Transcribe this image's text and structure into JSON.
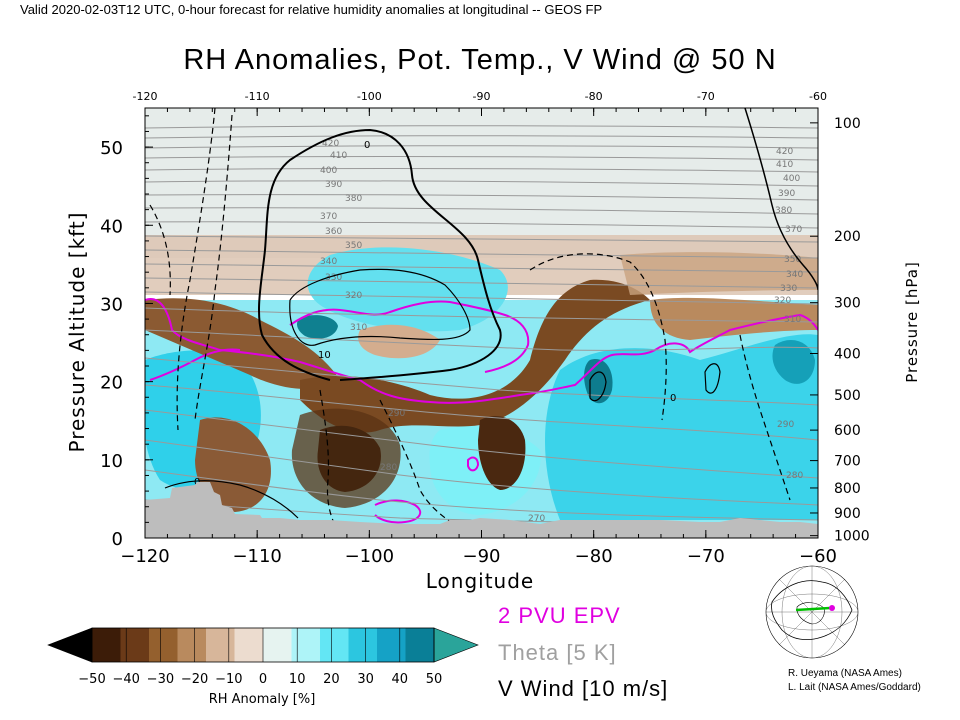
{
  "header": "Valid 2020-02-03T12 UTC, 0-hour forecast for relative humidity anomalies at longitudinal -- GEOS FP",
  "chart_data": {
    "type": "heatmap",
    "title": "RH Anomalies, Pot. Temp., V Wind @ 50 N",
    "xlabel": "Longitude",
    "ylabel": "Pressure Altitude [kft]",
    "y2label": "Pressure [hPa]",
    "xlim": [
      -120,
      -60
    ],
    "ylim": [
      0,
      55
    ],
    "x_ticks": [
      -120,
      -110,
      -100,
      -90,
      -80,
      -70,
      -60
    ],
    "x_tick_labels": [
      "−120",
      "−110",
      "−100",
      "−90",
      "−80",
      "−70",
      "−60"
    ],
    "top_ticks": [
      -120,
      -110,
      -100,
      -90,
      -80,
      -70,
      -60
    ],
    "y_ticks": [
      0,
      10,
      20,
      30,
      40,
      50
    ],
    "pressure_ticks": [
      {
        "hpa": 100,
        "kft": 53.1
      },
      {
        "hpa": 200,
        "kft": 38.6
      },
      {
        "hpa": 300,
        "kft": 30.1
      },
      {
        "hpa": 400,
        "kft": 23.6
      },
      {
        "hpa": 500,
        "kft": 18.3
      },
      {
        "hpa": 600,
        "kft": 13.8
      },
      {
        "hpa": 700,
        "kft": 9.9
      },
      {
        "hpa": 800,
        "kft": 6.4
      },
      {
        "hpa": 900,
        "kft": 3.2
      },
      {
        "hpa": 1000,
        "kft": 0.3
      }
    ],
    "theta_isentropes": [
      {
        "theta": 270,
        "kft": 2.5
      },
      {
        "theta": 280,
        "kft": 4.0
      },
      {
        "theta": 290,
        "kft": 15.5
      },
      {
        "theta": 310,
        "kft": 27.0
      },
      {
        "theta": 320,
        "kft": 31.0
      },
      {
        "theta": 330,
        "kft": 32.5
      },
      {
        "theta": 340,
        "kft": 35.0
      },
      {
        "theta": 350,
        "kft": 37.5
      },
      {
        "theta": 360,
        "kft": 40.0
      },
      {
        "theta": 370,
        "kft": 42.0
      },
      {
        "theta": 380,
        "kft": 44.5
      },
      {
        "theta": 390,
        "kft": 46.0
      },
      {
        "theta": 400,
        "kft": 47.5
      },
      {
        "theta": 410,
        "kft": 49.5
      },
      {
        "theta": 420,
        "kft": 51.0
      }
    ],
    "theta_labels_shown": [
      "270",
      "280",
      "290",
      "310",
      "320",
      "330",
      "340",
      "350",
      "360",
      "370",
      "380",
      "390",
      "400",
      "410",
      "420"
    ],
    "vwind_contour_labels": [
      "0",
      "10"
    ],
    "colorbar": {
      "label": "RH Anomaly [%]",
      "ticks": [
        -50,
        -40,
        -30,
        -20,
        -10,
        0,
        10,
        20,
        30,
        40,
        50
      ],
      "tick_labels": [
        "−50",
        "−40",
        "−30",
        "−20",
        "−10",
        "0",
        "10",
        "20",
        "30",
        "40",
        "50"
      ],
      "colors": [
        "#000000",
        "#3c1c08",
        "#6b3a18",
        "#94602e",
        "#b98a5e",
        "#d7b69a",
        "#ecdccf",
        "#e6f3f0",
        "#aef4f8",
        "#63e6f4",
        "#2cc6e0",
        "#15a2c6",
        "#0a7f97",
        "#2aa49a"
      ]
    },
    "legend": [
      {
        "label": "2 PVU EPV",
        "color": "#e000e0"
      },
      {
        "label": "Theta [5 K]",
        "color": "#a0a0a0"
      },
      {
        "label": "V Wind [10 m/s]",
        "color": "#000000"
      }
    ],
    "terrain_color": "#bdbdbd"
  },
  "credits": [
    "R. Ueyama (NASA Ames)",
    "L. Lait (NASA Ames/Goddard)"
  ]
}
